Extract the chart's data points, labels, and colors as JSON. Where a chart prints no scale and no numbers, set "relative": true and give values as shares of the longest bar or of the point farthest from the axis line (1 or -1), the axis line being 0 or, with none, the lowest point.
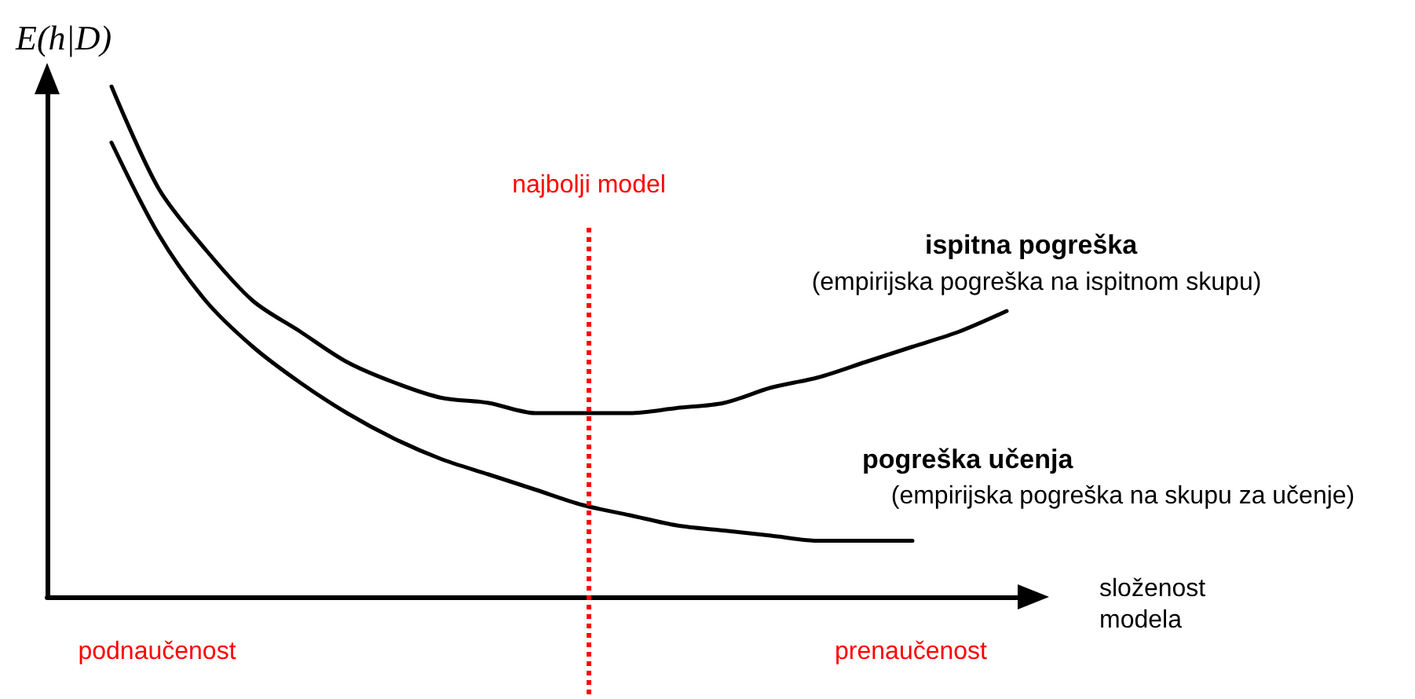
{
  "chart_data": {
    "type": "line",
    "relative": true,
    "xlabel": "složenost modela",
    "ylabel": "E(h|D)",
    "categories": [
      null,
      null,
      null,
      null,
      null,
      null,
      null,
      null,
      null,
      null,
      null,
      null,
      null,
      null,
      null,
      null,
      null,
      null,
      null,
      null
    ],
    "series": [
      {
        "name": "ispitna pogreška",
        "color": "#000000",
        "values": [
          1,
          0.8,
          0.68,
          0.58,
          0.52,
          0.46,
          0.42,
          0.39,
          0.38,
          0.36,
          0.36,
          0.36,
          0.37,
          0.38,
          0.41,
          0.43,
          0.46,
          0.49,
          0.52,
          0.56
        ]
      },
      {
        "name": "pogreška učenja",
        "color": "#000000",
        "values": [
          0.89,
          0.71,
          0.58,
          0.49,
          0.42,
          0.36,
          0.31,
          0.27,
          0.24,
          0.21,
          0.18,
          0.16,
          0.14,
          0.13,
          0.12,
          0.11,
          0.11,
          0.11,
          null,
          null
        ]
      }
    ],
    "annotations": [
      "(empirijska pogreška na ispitnom skupu)",
      "(empirijska pogreška na skupu za učenje)",
      "podnaučenost",
      "prenaučenost",
      "najbolji model"
    ],
    "legend": false,
    "grid": false,
    "marker": "none",
    "line_style": "solid"
  }
}
